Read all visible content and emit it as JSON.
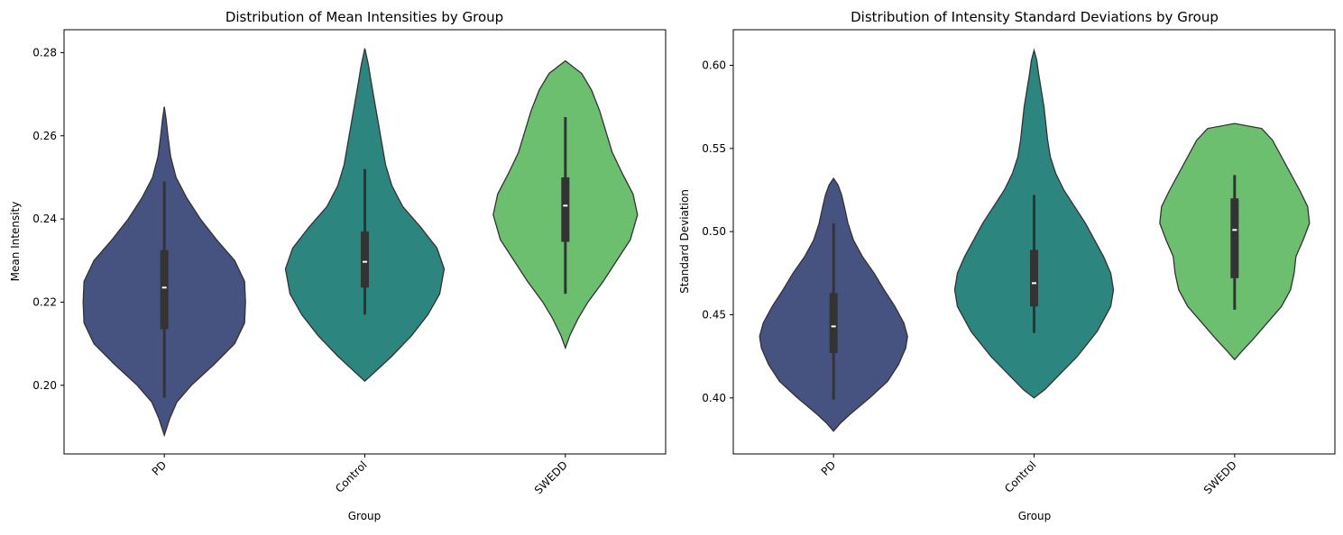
{
  "chart_data": [
    {
      "type": "violin",
      "title": "Distribution of Mean Intensities by Group",
      "xlabel": "Group",
      "ylabel": "Mean Intensity",
      "categories": [
        "PD",
        "Control",
        "SWEDD"
      ],
      "ylim": [
        0.1835,
        0.2855
      ],
      "yticks": [
        0.2,
        0.22,
        0.24,
        0.26,
        0.28
      ],
      "ytick_labels": [
        "0.20",
        "0.22",
        "0.24",
        "0.26",
        "0.28"
      ],
      "colors": [
        "#46527f",
        "#2d8580",
        "#6cbf6e"
      ],
      "grid": false,
      "violins": [
        {
          "range": [
            0.188,
            0.267
          ],
          "whisker": [
            0.197,
            0.249
          ],
          "box": [
            0.2135,
            0.2325
          ],
          "median": 0.2235,
          "density": [
            [
              0.188,
              0
            ],
            [
              0.192,
              6
            ],
            [
              0.196,
              14
            ],
            [
              0.2,
              30
            ],
            [
              0.205,
              55
            ],
            [
              0.21,
              78
            ],
            [
              0.215,
              89
            ],
            [
              0.22,
              90
            ],
            [
              0.225,
              89
            ],
            [
              0.23,
              78
            ],
            [
              0.235,
              58
            ],
            [
              0.24,
              40
            ],
            [
              0.245,
              25
            ],
            [
              0.25,
              13
            ],
            [
              0.255,
              7
            ],
            [
              0.26,
              4
            ],
            [
              0.264,
              2
            ],
            [
              0.267,
              0
            ]
          ]
        },
        {
          "range": [
            0.201,
            0.281
          ],
          "whisker": [
            0.217,
            0.252
          ],
          "box": [
            0.2235,
            0.237
          ],
          "median": 0.2297,
          "density": [
            [
              0.201,
              0
            ],
            [
              0.203,
              10
            ],
            [
              0.207,
              30
            ],
            [
              0.212,
              52
            ],
            [
              0.217,
              70
            ],
            [
              0.222,
              83
            ],
            [
              0.228,
              88
            ],
            [
              0.233,
              80
            ],
            [
              0.238,
              62
            ],
            [
              0.243,
              42
            ],
            [
              0.248,
              30
            ],
            [
              0.253,
              23
            ],
            [
              0.258,
              19
            ],
            [
              0.263,
              15
            ],
            [
              0.268,
              11
            ],
            [
              0.273,
              7
            ],
            [
              0.277,
              4
            ],
            [
              0.281,
              0
            ]
          ]
        },
        {
          "range": [
            0.209,
            0.278
          ],
          "whisker": [
            0.222,
            0.2645
          ],
          "box": [
            0.2345,
            0.25
          ],
          "median": 0.2432,
          "density": [
            [
              0.209,
              0
            ],
            [
              0.212,
              5
            ],
            [
              0.216,
              14
            ],
            [
              0.22,
              25
            ],
            [
              0.225,
              42
            ],
            [
              0.23,
              57
            ],
            [
              0.235,
              72
            ],
            [
              0.241,
              80
            ],
            [
              0.246,
              75
            ],
            [
              0.251,
              63
            ],
            [
              0.256,
              52
            ],
            [
              0.261,
              45
            ],
            [
              0.266,
              38
            ],
            [
              0.271,
              29
            ],
            [
              0.275,
              18
            ],
            [
              0.278,
              0
            ]
          ]
        }
      ]
    },
    {
      "type": "violin",
      "title": "Distribution of Intensity Standard Deviations by Group",
      "xlabel": "Group",
      "ylabel": "Standard Deviation",
      "categories": [
        "PD",
        "Control",
        "SWEDD"
      ],
      "ylim": [
        0.3663,
        0.6214
      ],
      "yticks": [
        0.4,
        0.45,
        0.5,
        0.55,
        0.6
      ],
      "ytick_labels": [
        "0.40",
        "0.45",
        "0.50",
        "0.55",
        "0.60"
      ],
      "colors": [
        "#46527f",
        "#2d8580",
        "#6cbf6e"
      ],
      "grid": false,
      "violins": [
        {
          "range": [
            0.38,
            0.532
          ],
          "whisker": [
            0.399,
            0.505
          ],
          "box": [
            0.427,
            0.463
          ],
          "median": 0.443,
          "density": [
            [
              0.38,
              0
            ],
            [
              0.385,
              8
            ],
            [
              0.39,
              18
            ],
            [
              0.4,
              40
            ],
            [
              0.41,
              60
            ],
            [
              0.42,
              72
            ],
            [
              0.43,
              80
            ],
            [
              0.437,
              82
            ],
            [
              0.445,
              78
            ],
            [
              0.455,
              68
            ],
            [
              0.465,
              56
            ],
            [
              0.475,
              45
            ],
            [
              0.485,
              32
            ],
            [
              0.495,
              22
            ],
            [
              0.505,
              16
            ],
            [
              0.515,
              12
            ],
            [
              0.522,
              9
            ],
            [
              0.528,
              5
            ],
            [
              0.532,
              0
            ]
          ]
        },
        {
          "range": [
            0.4,
            0.609
          ],
          "whisker": [
            0.439,
            0.522
          ],
          "box": [
            0.455,
            0.489
          ],
          "median": 0.469,
          "density": [
            [
              0.4,
              0
            ],
            [
              0.405,
              12
            ],
            [
              0.415,
              30
            ],
            [
              0.425,
              48
            ],
            [
              0.44,
              70
            ],
            [
              0.455,
              85
            ],
            [
              0.465,
              88
            ],
            [
              0.475,
              85
            ],
            [
              0.485,
              77
            ],
            [
              0.495,
              67
            ],
            [
              0.505,
              57
            ],
            [
              0.515,
              45
            ],
            [
              0.525,
              33
            ],
            [
              0.535,
              24
            ],
            [
              0.545,
              18
            ],
            [
              0.555,
              15
            ],
            [
              0.565,
              13
            ],
            [
              0.575,
              11
            ],
            [
              0.585,
              8
            ],
            [
              0.595,
              5
            ],
            [
              0.603,
              3
            ],
            [
              0.609,
              0
            ]
          ]
        },
        {
          "range": [
            0.423,
            0.565
          ],
          "whisker": [
            0.453,
            0.534
          ],
          "box": [
            0.472,
            0.52
          ],
          "median": 0.501,
          "density": [
            [
              0.423,
              0
            ],
            [
              0.428,
              8
            ],
            [
              0.435,
              20
            ],
            [
              0.445,
              36
            ],
            [
              0.455,
              52
            ],
            [
              0.465,
              62
            ],
            [
              0.475,
              66
            ],
            [
              0.485,
              68
            ],
            [
              0.495,
              76
            ],
            [
              0.505,
              83
            ],
            [
              0.515,
              81
            ],
            [
              0.525,
              72
            ],
            [
              0.535,
              62
            ],
            [
              0.545,
              52
            ],
            [
              0.555,
              42
            ],
            [
              0.562,
              30
            ],
            [
              0.565,
              0
            ]
          ]
        }
      ]
    }
  ]
}
